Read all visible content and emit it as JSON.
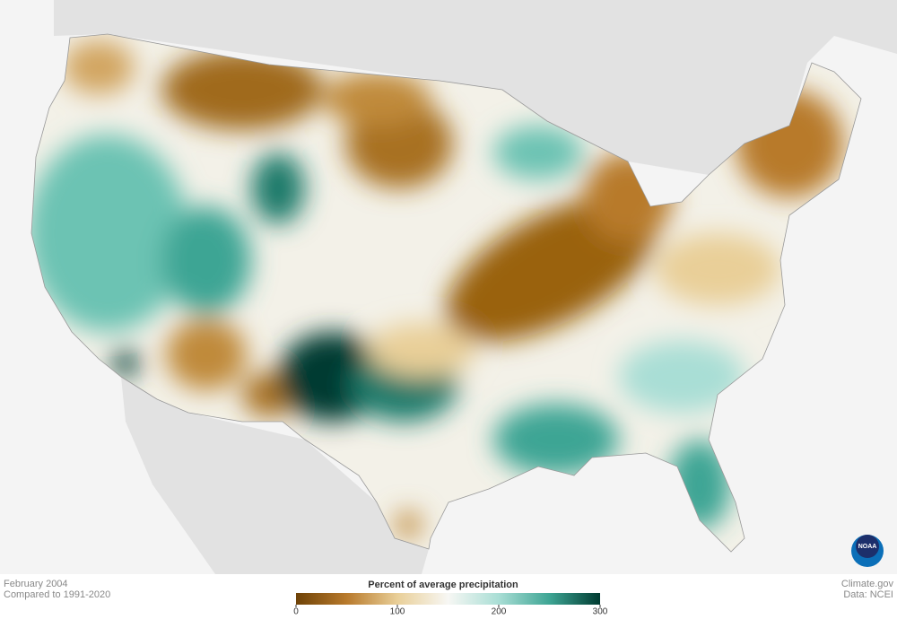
{
  "caption": {
    "period": "February 2004",
    "baseline": "Compared to 1991-2020"
  },
  "legend": {
    "title": "Percent of average precipitation",
    "range": [
      0,
      300
    ],
    "ticks": [
      0,
      100,
      200,
      300
    ],
    "colors": [
      "#6e4207",
      "#b87a2c",
      "#e9cf98",
      "#f7f7f4",
      "#a9ded5",
      "#3ea594",
      "#003b31"
    ]
  },
  "credits": {
    "site": "Climate.gov",
    "source": "Data: NCEI"
  },
  "logo": {
    "text": "NOAA"
  }
}
